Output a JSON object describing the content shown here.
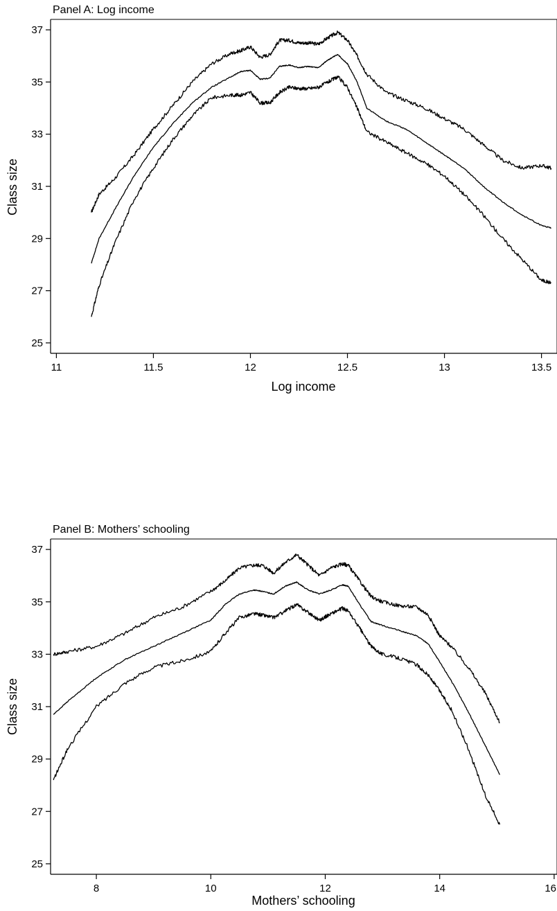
{
  "chart_data": [
    {
      "type": "line",
      "title": "Panel A: Log income",
      "xlabel": "Log income",
      "ylabel": "Class size",
      "xlim": [
        10.97,
        13.58
      ],
      "ylim": [
        24.6,
        37.4
      ],
      "x_ticks": [
        "11",
        "11.5",
        "12",
        "12.5",
        "13",
        "13.5"
      ],
      "y_ticks": [
        "25",
        "27",
        "29",
        "31",
        "33",
        "35",
        "37"
      ],
      "grid": false,
      "legend": "none",
      "series": [
        {
          "x": [
            11.18,
            11.22,
            11.3,
            11.4,
            11.5,
            11.6,
            11.7,
            11.8,
            11.9,
            11.95,
            12.0,
            12.05,
            12.1,
            12.15,
            12.2,
            12.25,
            12.3,
            12.35,
            12.4,
            12.45,
            12.5,
            12.55,
            12.6,
            12.7,
            12.8,
            12.9,
            13.0,
            13.1,
            13.2,
            13.3,
            13.4,
            13.5,
            13.55
          ],
          "y": [
            30.0,
            30.7,
            31.3,
            32.2,
            33.2,
            34.1,
            35.0,
            35.7,
            36.1,
            36.2,
            36.35,
            35.95,
            36.05,
            36.6,
            36.6,
            36.5,
            36.5,
            36.45,
            36.7,
            36.9,
            36.6,
            36.0,
            35.3,
            34.6,
            34.3,
            34.0,
            33.6,
            33.2,
            32.6,
            32.0,
            31.7,
            31.8,
            31.7
          ]
        },
        {
          "x": [
            11.18,
            11.22,
            11.3,
            11.4,
            11.5,
            11.6,
            11.7,
            11.8,
            11.9,
            11.95,
            12.0,
            12.05,
            12.1,
            12.15,
            12.2,
            12.25,
            12.3,
            12.35,
            12.4,
            12.45,
            12.5,
            12.55,
            12.6,
            12.7,
            12.8,
            12.9,
            13.0,
            13.1,
            13.2,
            13.3,
            13.4,
            13.5,
            13.55
          ],
          "y": [
            28.05,
            29.0,
            30.1,
            31.4,
            32.5,
            33.4,
            34.2,
            34.8,
            35.2,
            35.4,
            35.45,
            35.1,
            35.15,
            35.6,
            35.65,
            35.55,
            35.6,
            35.55,
            35.85,
            36.05,
            35.7,
            35.0,
            34.0,
            33.5,
            33.2,
            32.7,
            32.2,
            31.7,
            31.0,
            30.4,
            29.9,
            29.5,
            29.4
          ]
        },
        {
          "x": [
            11.18,
            11.22,
            11.3,
            11.4,
            11.5,
            11.6,
            11.7,
            11.8,
            11.9,
            11.95,
            12.0,
            12.05,
            12.1,
            12.15,
            12.2,
            12.25,
            12.3,
            12.35,
            12.4,
            12.45,
            12.5,
            12.55,
            12.6,
            12.7,
            12.8,
            12.9,
            13.0,
            13.1,
            13.2,
            13.3,
            13.4,
            13.5,
            13.55
          ],
          "y": [
            26.0,
            27.2,
            28.8,
            30.5,
            31.7,
            32.8,
            33.7,
            34.4,
            34.5,
            34.5,
            34.6,
            34.2,
            34.2,
            34.6,
            34.8,
            34.75,
            34.75,
            34.8,
            35.0,
            35.2,
            34.8,
            34.0,
            33.1,
            32.7,
            32.3,
            31.9,
            31.4,
            30.7,
            29.9,
            29.0,
            28.2,
            27.4,
            27.3
          ]
        }
      ]
    },
    {
      "type": "line",
      "title": "Panel B: Mothers’ schooling",
      "xlabel": "Mothers’ schooling",
      "ylabel": "Class size",
      "xlim": [
        7.2,
        16.05
      ],
      "ylim": [
        24.6,
        37.4
      ],
      "x_ticks": [
        "8",
        "10",
        "12",
        "14",
        "16"
      ],
      "y_ticks": [
        "25",
        "27",
        "29",
        "31",
        "33",
        "35",
        "37"
      ],
      "grid": false,
      "legend": "none",
      "series": [
        {
          "x": [
            7.25,
            7.5,
            8.0,
            8.5,
            9.0,
            9.5,
            10.0,
            10.25,
            10.5,
            10.75,
            10.9,
            11.1,
            11.3,
            11.5,
            11.7,
            11.9,
            12.1,
            12.3,
            12.4,
            12.6,
            12.8,
            13.0,
            13.3,
            13.6,
            13.8,
            14.0,
            14.2,
            14.5,
            14.8,
            15.05
          ],
          "y": [
            33.0,
            33.1,
            33.3,
            33.8,
            34.4,
            34.8,
            35.4,
            35.8,
            36.3,
            36.4,
            36.4,
            36.1,
            36.5,
            36.8,
            36.4,
            36.0,
            36.3,
            36.45,
            36.4,
            35.8,
            35.2,
            35.0,
            34.85,
            34.8,
            34.5,
            33.7,
            33.3,
            32.5,
            31.5,
            30.4
          ]
        },
        {
          "x": [
            7.25,
            7.5,
            8.0,
            8.5,
            9.0,
            9.5,
            10.0,
            10.25,
            10.5,
            10.75,
            10.9,
            11.1,
            11.3,
            11.5,
            11.7,
            11.9,
            12.1,
            12.3,
            12.4,
            12.6,
            12.8,
            13.0,
            13.3,
            13.6,
            13.8,
            14.0,
            14.2,
            14.5,
            14.8,
            15.05
          ],
          "y": [
            30.7,
            31.2,
            32.1,
            32.8,
            33.3,
            33.8,
            34.3,
            34.9,
            35.3,
            35.45,
            35.4,
            35.3,
            35.6,
            35.75,
            35.45,
            35.3,
            35.45,
            35.65,
            35.6,
            34.9,
            34.25,
            34.1,
            33.9,
            33.7,
            33.4,
            32.7,
            32.0,
            30.8,
            29.5,
            28.4
          ]
        },
        {
          "x": [
            7.25,
            7.5,
            8.0,
            8.5,
            9.0,
            9.5,
            10.0,
            10.25,
            10.5,
            10.75,
            10.9,
            11.1,
            11.3,
            11.5,
            11.7,
            11.9,
            12.1,
            12.3,
            12.4,
            12.6,
            12.8,
            13.0,
            13.3,
            13.6,
            13.8,
            14.0,
            14.2,
            14.5,
            14.8,
            15.05
          ],
          "y": [
            28.2,
            29.4,
            31.0,
            31.9,
            32.5,
            32.75,
            33.1,
            33.8,
            34.4,
            34.55,
            34.5,
            34.4,
            34.65,
            34.9,
            34.6,
            34.3,
            34.55,
            34.75,
            34.65,
            34.0,
            33.3,
            33.0,
            32.85,
            32.6,
            32.2,
            31.6,
            30.9,
            29.4,
            27.6,
            26.5
          ]
        }
      ]
    }
  ]
}
